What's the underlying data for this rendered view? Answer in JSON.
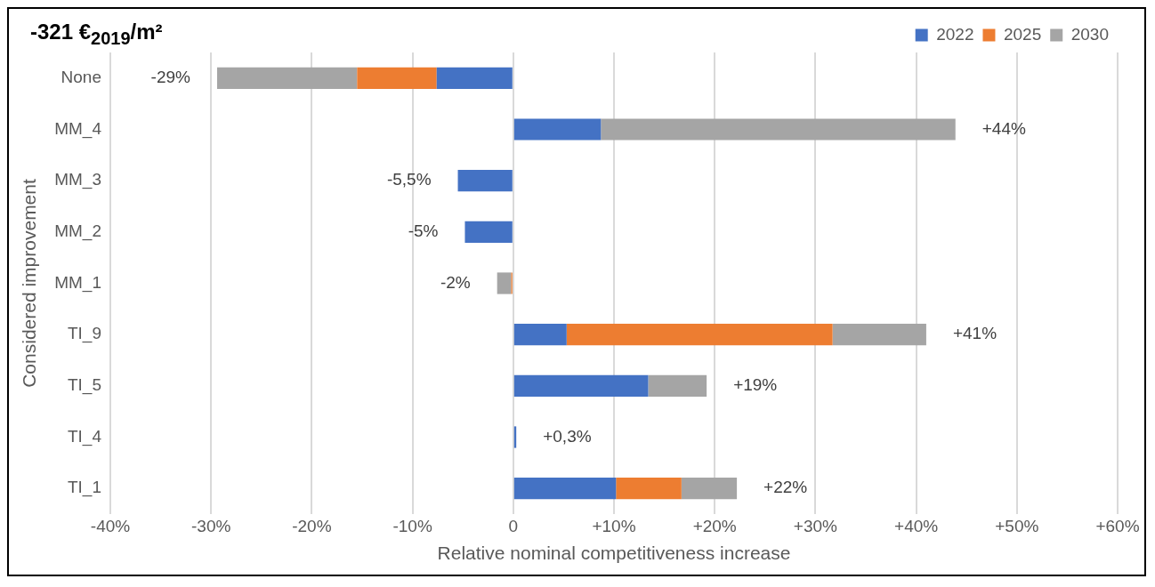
{
  "chart_data": {
    "type": "bar",
    "orientation": "horizontal",
    "stacked": true,
    "title": "-321 €$_{2019}$/m²",
    "xlabel": "Relative nominal competitiveness increase",
    "ylabel": "Considered improvement",
    "categories": [
      "None",
      "MM_4",
      "MM_3",
      "MM_2",
      "MM_1",
      "TI_9",
      "TI_5",
      "TI_4",
      "TI_1"
    ],
    "series": [
      {
        "name": "2022",
        "color": "#4472c4",
        "values": [
          -7.6,
          8.7,
          -5.5,
          -4.8,
          null,
          5.3,
          13.4,
          0.3,
          10.2
        ]
      },
      {
        "name": "2025",
        "color": "#ed7d31",
        "values": [
          -7.9,
          null,
          null,
          null,
          -0.2,
          26.4,
          null,
          null,
          6.5
        ]
      },
      {
        "name": "2030",
        "color": "#a5a5a5",
        "values": [
          -13.9,
          35.2,
          null,
          null,
          -1.4,
          9.3,
          5.8,
          null,
          5.5
        ]
      }
    ],
    "totals": [
      "-29%",
      "+44%",
      "-5,5%",
      "-5%",
      "-2%",
      "+41%",
      "+19%",
      "+0,3%",
      "+22%"
    ],
    "xlim": [
      -40,
      60
    ],
    "xticks": [
      {
        "value": -40,
        "label": "-40%"
      },
      {
        "value": -30,
        "label": "-30%"
      },
      {
        "value": -20,
        "label": "-20%"
      },
      {
        "value": -10,
        "label": "-10%"
      },
      0,
      {
        "value": 10,
        "label": "+10%"
      },
      {
        "value": 20,
        "label": "+20%"
      },
      {
        "value": 30,
        "label": "+30%"
      },
      {
        "value": 40,
        "label": "+40%"
      },
      {
        "value": 50,
        "label": "+50%"
      },
      {
        "value": 60,
        "label": "+60%"
      }
    ],
    "grid": "x",
    "legend": "top right"
  }
}
